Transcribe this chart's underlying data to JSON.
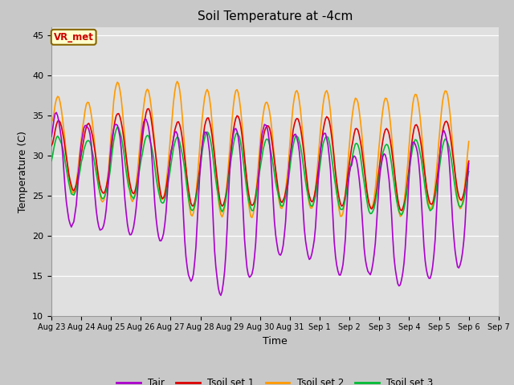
{
  "title": "Soil Temperature at -4cm",
  "xlabel": "Time",
  "ylabel": "Temperature (C)",
  "ylim": [
    10,
    46
  ],
  "yticks": [
    10,
    15,
    20,
    25,
    30,
    35,
    40,
    45
  ],
  "color_tair": "#aa00cc",
  "color_tsoil1": "#dd0000",
  "color_tsoil2": "#ff9900",
  "color_tsoil3": "#00bb33",
  "fig_facecolor": "#c8c8c8",
  "plot_facecolor": "#e0e0e0",
  "annotation_text": "VR_met",
  "annotation_color": "#cc0000",
  "annotation_bg": "#ffffcc",
  "legend_labels": [
    "Tair",
    "Tsoil set 1",
    "Tsoil set 2",
    "Tsoil set 3"
  ],
  "tick_labels": [
    "Aug 23",
    "Aug 24",
    "Aug 25",
    "Aug 26",
    "Aug 27",
    "Aug 28",
    "Aug 29",
    "Aug 30",
    "Aug 31",
    "Sep 1",
    "Sep 2",
    "Sep 3",
    "Sep 4",
    "Sep 5",
    "Sep 6",
    "Sep 7"
  ],
  "n_points": 336,
  "n_days": 14
}
